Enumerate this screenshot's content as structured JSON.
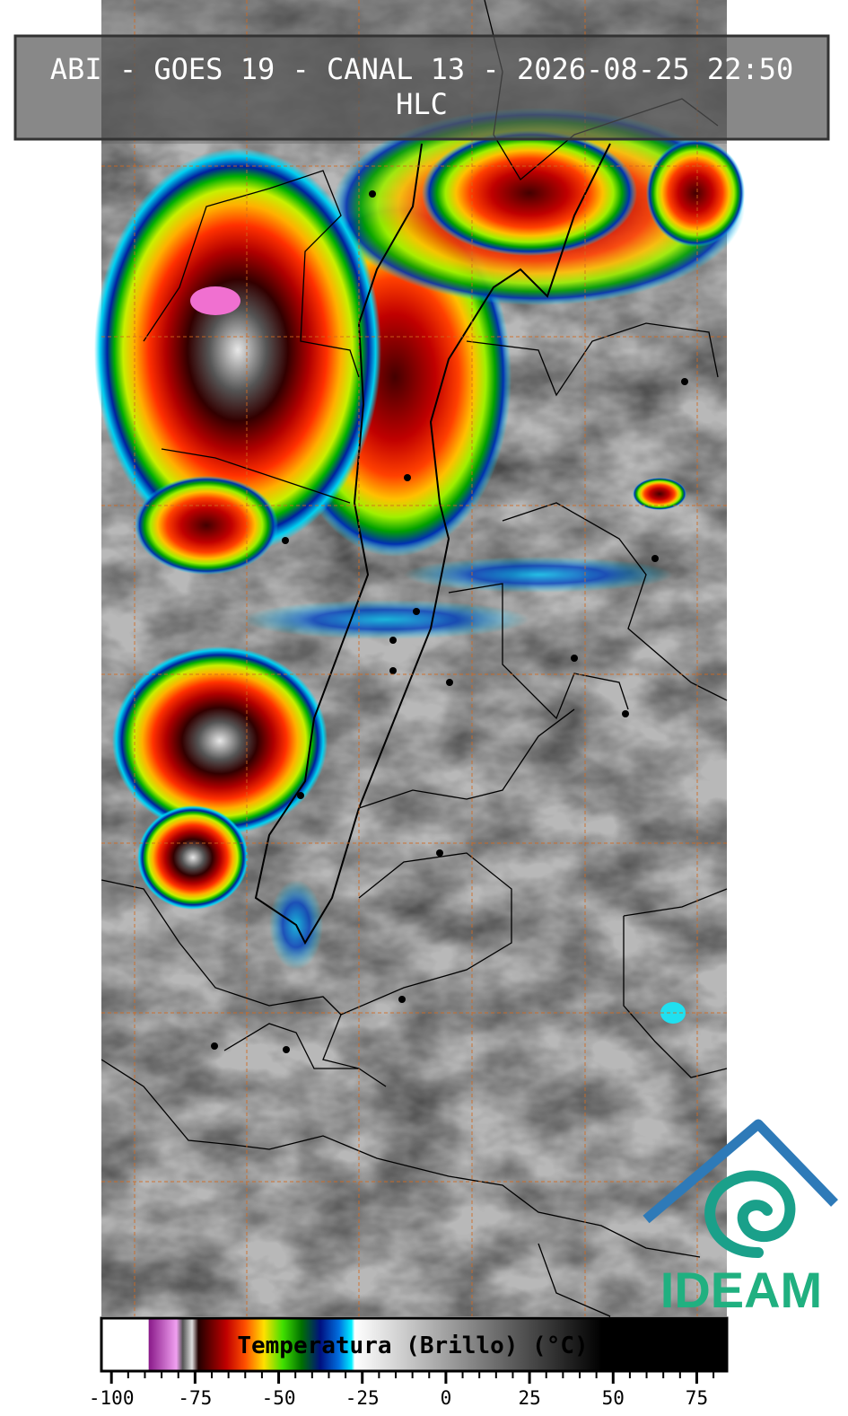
{
  "header": {
    "title": "ABI - GOES 19 - CANAL 13 - 2026-08-25 22:50",
    "subtitle": "HLC"
  },
  "colorbar": {
    "label": "Temperatura (Brillo) (°C)",
    "lim": [
      -103,
      84
    ],
    "ticks": [
      -100,
      -75,
      -50,
      -25,
      0,
      25,
      50,
      75
    ]
  },
  "logo": {
    "text": "IDEAM"
  }
}
